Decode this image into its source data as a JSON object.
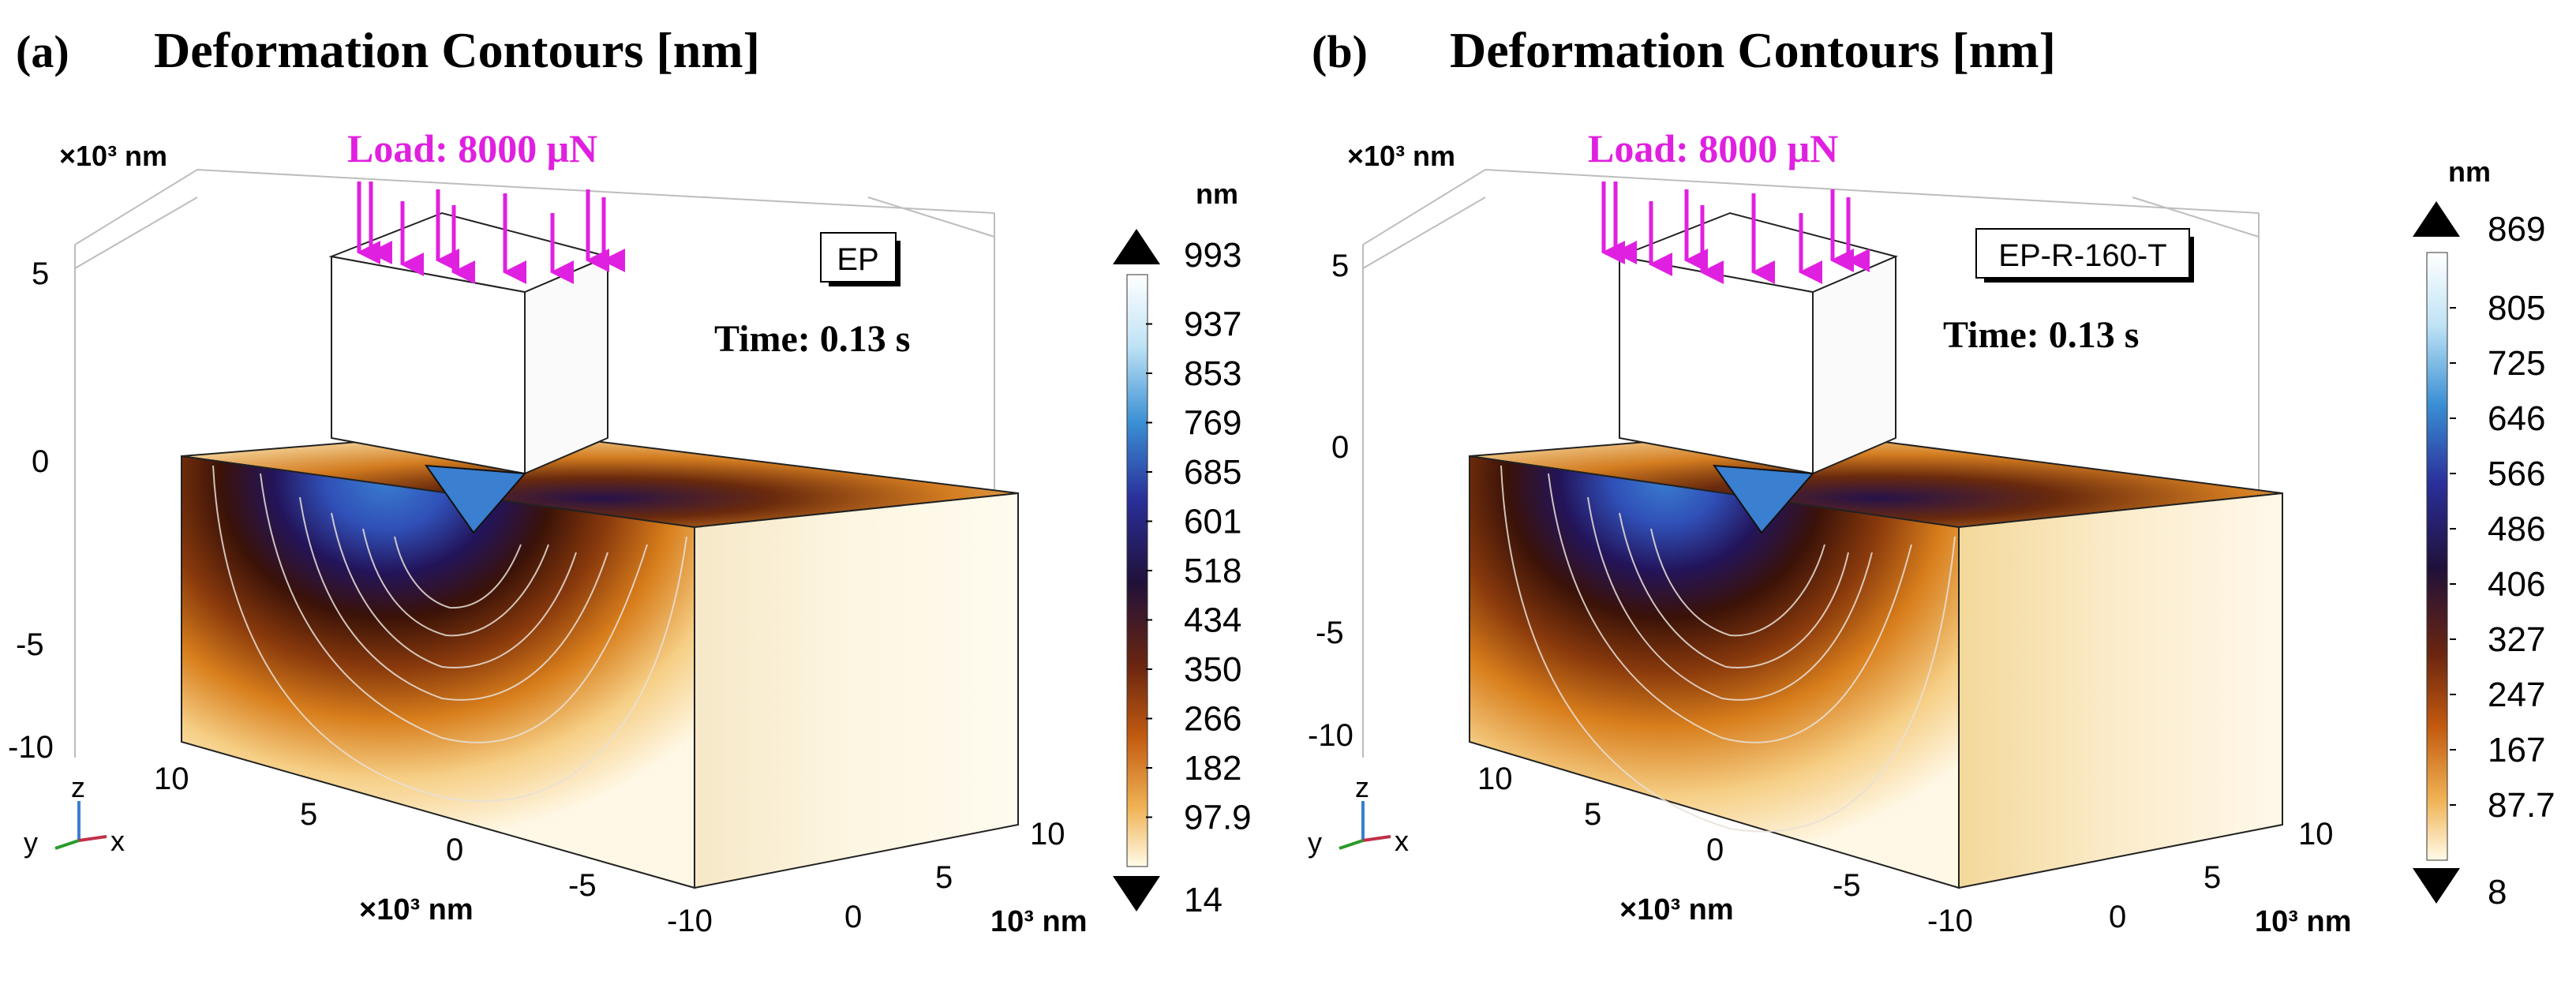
{
  "chart_data": [
    {
      "type": "heatmap",
      "panel_label": "(a)",
      "title": "Deformation Contours [nm]",
      "load_label": "Load: 8000 μN",
      "sample_label": "EP",
      "time_label": "Time: 0.13 s",
      "z_axis": {
        "unit": "×10³ nm",
        "ticks": [
          "5",
          "0",
          "-5",
          "-10"
        ]
      },
      "x_axis": {
        "unit": "×10³ nm",
        "ticks": [
          "10",
          "5",
          "0",
          "-5",
          "-10"
        ]
      },
      "y_axis": {
        "unit": "10³ nm",
        "ticks": [
          "0",
          "5",
          "10"
        ]
      },
      "colorbar": {
        "unit": "nm",
        "max": "993",
        "min": "14",
        "ticks": [
          "937",
          "853",
          "769",
          "685",
          "601",
          "518",
          "434",
          "350",
          "266",
          "182",
          "97.9"
        ]
      },
      "axis_triad": {
        "z": "z",
        "y": "y",
        "x": "x"
      }
    },
    {
      "type": "heatmap",
      "panel_label": "(b)",
      "title": "Deformation Contours [nm]",
      "load_label": "Load: 8000 μN",
      "sample_label": "EP-R-160-T",
      "time_label": "Time: 0.13 s",
      "z_axis": {
        "unit": "×10³ nm",
        "ticks": [
          "5",
          "0",
          "-5",
          "-10"
        ]
      },
      "x_axis": {
        "unit": "×10³ nm",
        "ticks": [
          "10",
          "5",
          "0",
          "-5",
          "-10"
        ]
      },
      "y_axis": {
        "unit": "10³ nm",
        "ticks": [
          "0",
          "5",
          "10"
        ]
      },
      "colorbar": {
        "unit": "nm",
        "max": "869",
        "min": "8",
        "ticks": [
          "805",
          "725",
          "646",
          "566",
          "486",
          "406",
          "327",
          "247",
          "167",
          "87.7"
        ]
      },
      "axis_triad": {
        "z": "z",
        "y": "y",
        "x": "x"
      }
    }
  ]
}
